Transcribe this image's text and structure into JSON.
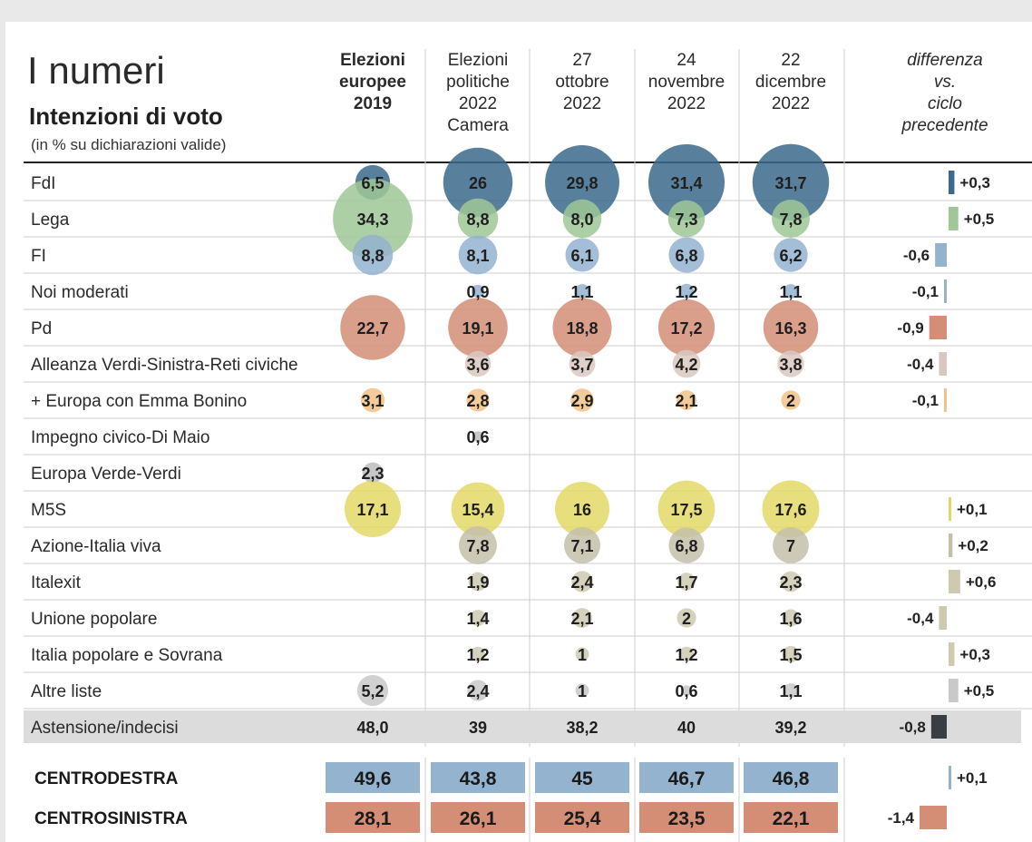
{
  "header": {
    "kicker": "I numeri",
    "title": "Intenzioni di voto",
    "subtitle": "(in % su dichiarazioni valide)"
  },
  "chart_data": {
    "type": "table",
    "columns": [
      {
        "lines": [
          "Elezioni",
          "europee",
          "2019"
        ],
        "bold": true
      },
      {
        "lines": [
          "Elezioni",
          "politiche",
          "2022",
          "Camera"
        ],
        "bold": false
      },
      {
        "lines": [
          "27",
          "ottobre",
          "2022"
        ],
        "bold": false
      },
      {
        "lines": [
          "24",
          "novembre",
          "2022"
        ],
        "bold": false
      },
      {
        "lines": [
          "22",
          "dicembre",
          "2022"
        ],
        "bold": false
      }
    ],
    "diff_header": [
      "differenza",
      "vs.",
      "ciclo",
      "precedente"
    ],
    "rows": [
      {
        "name": "FdI",
        "color": "#3b6a8b",
        "values": [
          "6,5",
          "26",
          "29,8",
          "31,4",
          "31,7"
        ],
        "diff": "+0,3",
        "diff_value": 0.3
      },
      {
        "name": "Lega",
        "color": "#9fc797",
        "values": [
          "34,3",
          "8,8",
          "8,0",
          "7,3",
          "7,8"
        ],
        "diff": "+0,5",
        "diff_value": 0.5
      },
      {
        "name": "FI",
        "color": "#93b3cf",
        "values": [
          "8,8",
          "8,1",
          "6,1",
          "6,8",
          "6,2"
        ],
        "diff": "-0,6",
        "diff_value": -0.6
      },
      {
        "name": "Noi moderati",
        "color": "#93b3cf",
        "values": [
          "",
          "0,9",
          "1,1",
          "1,2",
          "1,1"
        ],
        "diff": "-0,1",
        "diff_value": -0.1
      },
      {
        "name": "Pd",
        "color": "#d48e76",
        "values": [
          "22,7",
          "19,1",
          "18,8",
          "17,2",
          "16,3"
        ],
        "diff": "-0,9",
        "diff_value": -0.9
      },
      {
        "name": "Alleanza Verdi-Sinistra-Reti civiche",
        "color": "#d9c8c0",
        "values": [
          "",
          "3,6",
          "3,7",
          "4,2",
          "3,8"
        ],
        "diff": "-0,4",
        "diff_value": -0.4
      },
      {
        "name": "+ Europa con Emma Bonino",
        "color": "#f2c28a",
        "values": [
          "3,1",
          "2,8",
          "2,9",
          "2,1",
          "2"
        ],
        "diff": "-0,1",
        "diff_value": -0.1
      },
      {
        "name": "Impegno civico-Di Maio",
        "color": "#bdbdbd",
        "values": [
          "",
          "0,6",
          "",
          "",
          ""
        ],
        "diff": "",
        "diff_value": null
      },
      {
        "name": "Europa Verde-Verdi",
        "color": "#bdbdbd",
        "values": [
          "2,3",
          "",
          "",
          "",
          ""
        ],
        "diff": "",
        "diff_value": null
      },
      {
        "name": "M5S",
        "color": "#e3d866",
        "values": [
          "17,1",
          "15,4",
          "16",
          "17,5",
          "17,6"
        ],
        "diff": "+0,1",
        "diff_value": 0.1
      },
      {
        "name": "Azione-Italia viva",
        "color": "#c3bfa9",
        "values": [
          "",
          "7,8",
          "7,1",
          "6,8",
          "7"
        ],
        "diff": "+0,2",
        "diff_value": 0.2
      },
      {
        "name": "Italexit",
        "color": "#cdcab0",
        "values": [
          "",
          "1,9",
          "2,4",
          "1,7",
          "2,3"
        ],
        "diff": "+0,6",
        "diff_value": 0.6
      },
      {
        "name": "Unione popolare",
        "color": "#cdcab0",
        "values": [
          "",
          "1,4",
          "2,1",
          "2",
          "1,6"
        ],
        "diff": "-0,4",
        "diff_value": -0.4
      },
      {
        "name": "Italia popolare e Sovrana",
        "color": "#cdcab0",
        "values": [
          "",
          "1,2",
          "1",
          "1,2",
          "1,5"
        ],
        "diff": "+0,3",
        "diff_value": 0.3
      },
      {
        "name": "Altre liste",
        "color": "#c9c9c9",
        "values": [
          "5,2",
          "2,4",
          "1",
          "0,6",
          "1,1"
        ],
        "diff": "+0,5",
        "diff_value": 0.5
      },
      {
        "name": "Astensione/indecisi",
        "color": "#3a3d42",
        "values": [
          "48,0",
          "39",
          "38,2",
          "40",
          "39,2"
        ],
        "diff": "-0,8",
        "diff_value": -0.8,
        "shaded": true,
        "no_bubbles": true
      }
    ],
    "totals": [
      {
        "name": "CENTRODESTRA",
        "color": "#93b3cf",
        "values": [
          "49,6",
          "43,8",
          "45",
          "46,7",
          "46,8"
        ],
        "diff": "+0,1",
        "diff_value": 0.1
      },
      {
        "name": "CENTROSINISTRA",
        "color": "#d48e76",
        "values": [
          "28,1",
          "26,1",
          "25,4",
          "23,5",
          "22,1"
        ],
        "diff": "-1,4",
        "diff_value": -1.4
      }
    ]
  }
}
